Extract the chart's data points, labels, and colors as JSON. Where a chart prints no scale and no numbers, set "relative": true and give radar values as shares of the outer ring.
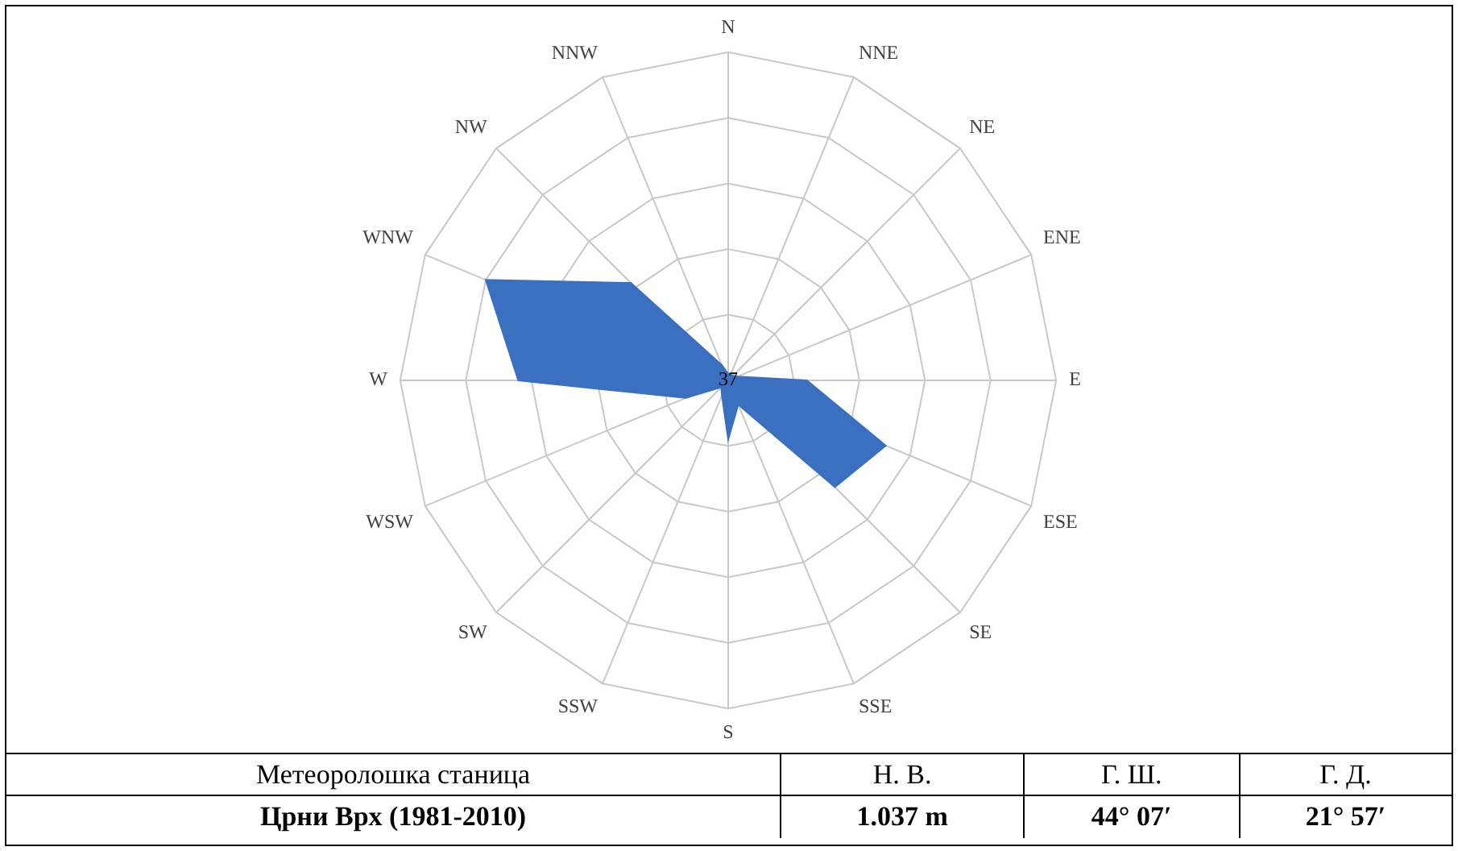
{
  "chart_data": {
    "type": "radar",
    "relative": true,
    "categories": [
      "N",
      "NNE",
      "NE",
      "ENE",
      "E",
      "ESE",
      "SE",
      "SSE",
      "S",
      "SSW",
      "SW",
      "WSW",
      "W",
      "WNW",
      "NW",
      "NNW"
    ],
    "series": [
      {
        "color": "#3b6fc0",
        "values": [
          0.02,
          0.02,
          0.02,
          0.03,
          0.24,
          0.52,
          0.46,
          0.08,
          0.18,
          0.05,
          0.03,
          0.14,
          0.64,
          0.8,
          0.42,
          0.05
        ]
      }
    ],
    "annotations": [
      "37",
      "Метеоролошка станица",
      "Н. В.",
      "Г. Ш.",
      "Г. Д.",
      "Црни Врх (1981-2010)",
      "1.037 m",
      "44° 07′",
      "21° 57′"
    ],
    "grid": true,
    "legend": false
  }
}
